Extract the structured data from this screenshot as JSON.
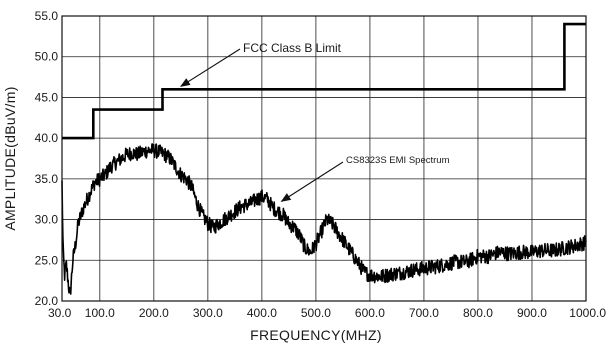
{
  "chart_data": {
    "type": "line",
    "xlabel": "FREQUENCY(MHZ)",
    "ylabel": "AMPLITUDE(dBuV/m)",
    "xlim": [
      30,
      1000
    ],
    "ylim": [
      20,
      55
    ],
    "x_ticks": [
      30,
      100,
      200,
      300,
      400,
      500,
      600,
      700,
      800,
      900,
      1000
    ],
    "x_tick_labels": [
      "30.0",
      "100.0",
      "200.0",
      "300.0",
      "400.0",
      "500.0",
      "600.0",
      "700.0",
      "800.0",
      "900.0",
      "1000.0"
    ],
    "y_ticks": [
      20,
      25,
      30,
      35,
      40,
      45,
      50,
      55
    ],
    "y_tick_labels": [
      "20.0",
      "25.0",
      "30.0",
      "35.0",
      "40.0",
      "45.0",
      "50.0",
      "55.0"
    ],
    "grid": true,
    "series": [
      {
        "name": "FCC Class B Limit",
        "style": "step",
        "x": [
          30,
          88,
          88,
          216,
          216,
          960,
          960,
          1000
        ],
        "y": [
          40.0,
          40.0,
          43.5,
          43.5,
          46.0,
          46.0,
          54.0,
          54.0
        ]
      },
      {
        "name": "CS8323S EMI Spectrum",
        "style": "noisy",
        "x": [
          30,
          32,
          35,
          38,
          42,
          45,
          50,
          55,
          60,
          70,
          80,
          90,
          100,
          110,
          120,
          130,
          140,
          150,
          160,
          170,
          180,
          190,
          200,
          210,
          220,
          230,
          240,
          250,
          260,
          270,
          280,
          290,
          300,
          310,
          320,
          330,
          340,
          350,
          360,
          370,
          380,
          390,
          400,
          410,
          420,
          430,
          440,
          450,
          460,
          470,
          480,
          490,
          500,
          510,
          520,
          530,
          540,
          550,
          560,
          570,
          580,
          590,
          600,
          620,
          640,
          660,
          680,
          700,
          720,
          740,
          760,
          780,
          800,
          820,
          840,
          860,
          880,
          900,
          920,
          940,
          960,
          980,
          1000
        ],
        "y": [
          34.5,
          26.0,
          23.0,
          24.5,
          22.0,
          20.5,
          25.0,
          27.0,
          29.5,
          31.5,
          33.0,
          34.5,
          35.0,
          35.5,
          36.5,
          37.0,
          37.5,
          38.0,
          38.2,
          38.0,
          38.3,
          38.5,
          38.5,
          38.3,
          38.0,
          37.5,
          36.5,
          35.5,
          35.0,
          34.0,
          32.0,
          30.5,
          29.5,
          29.0,
          29.5,
          30.0,
          30.5,
          31.0,
          31.5,
          31.8,
          32.0,
          32.5,
          32.8,
          32.5,
          31.5,
          31.0,
          30.5,
          29.5,
          29.0,
          28.0,
          26.5,
          26.0,
          27.0,
          28.5,
          30.0,
          29.5,
          28.5,
          27.5,
          26.5,
          25.5,
          24.5,
          23.5,
          23.2,
          23.0,
          23.3,
          23.5,
          23.8,
          24.0,
          24.2,
          24.5,
          24.8,
          24.8,
          25.5,
          25.5,
          26.0,
          25.8,
          26.0,
          26.0,
          26.2,
          26.2,
          26.5,
          26.8,
          27.2
        ],
        "noise_amplitude": 0.9
      }
    ],
    "annotations": [
      {
        "text": "FCC Class B Limit",
        "points_to_series": 0,
        "arrow_target_x": 250,
        "arrow_target_y": 46.0
      },
      {
        "text": "CS8323S EMI Spectrum",
        "points_to_series": 1,
        "arrow_target_x": 440,
        "arrow_target_y": 31.5
      }
    ]
  }
}
